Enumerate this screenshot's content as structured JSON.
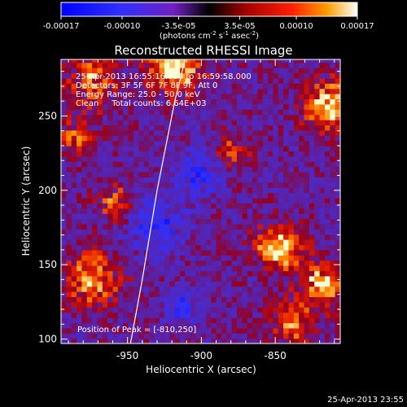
{
  "chart_data": {
    "type": "heatmap",
    "title": "Reconstructed RHESSI Image",
    "xlabel": "Heliocentric X (arcsec)",
    "ylabel": "Heliocentric Y (arcsec)",
    "xlim": [
      -995,
      -806
    ],
    "ylim": [
      97,
      288
    ],
    "xticks": [
      -950,
      -900,
      -850
    ],
    "xtick_labels": [
      "-950",
      "-900",
      "-850"
    ],
    "yticks": [
      100,
      150,
      200,
      250
    ],
    "ytick_labels": [
      "100",
      "150",
      "200",
      "250"
    ],
    "colorbar": {
      "range": [
        -0.00017,
        0.00017
      ],
      "tick_values": [
        -0.00017,
        -0.0001,
        -3.5e-05,
        3.5e-05,
        0.0001,
        0.00017
      ],
      "tick_labels": [
        "-0.00017",
        "-0.00010",
        "-3.5e-05",
        "3.5e-05",
        "0.00010",
        "0.00017"
      ],
      "units_text": "(photons cm",
      "units_exp1": "-2",
      "units_mid": " s",
      "units_exp2": "-1",
      "units_end": " asec",
      "units_exp3": "-2",
      "units_close": ")"
    },
    "info_lines": [
      "25-Apr-2013 16:55:16.000 to 16:59:58.000",
      "Detectors: 3F 5F 6F 7F 8F 9F, Att 0",
      "Energy Range: 25.0 - 50.0 keV",
      "Clean     Total counts: 6.64E+03"
    ],
    "peak_text": "Position of Peak = [-810,250]",
    "peak": [
      -810,
      250
    ],
    "limb_curve": [
      [
        -948,
        97
      ],
      [
        -940,
        140
      ],
      [
        -930,
        200
      ],
      [
        -918,
        260
      ],
      [
        -911,
        288
      ]
    ],
    "bright_regions": [
      {
        "x": -920,
        "y": 282,
        "r": 18,
        "v": 1.0
      },
      {
        "x": -975,
        "y": 272,
        "r": 16,
        "v": 0.7
      },
      {
        "x": -815,
        "y": 255,
        "r": 16,
        "v": 1.0
      },
      {
        "x": -985,
        "y": 235,
        "r": 12,
        "v": 0.6
      },
      {
        "x": -975,
        "y": 140,
        "r": 18,
        "v": 0.8
      },
      {
        "x": -850,
        "y": 160,
        "r": 16,
        "v": 0.9
      },
      {
        "x": -820,
        "y": 135,
        "r": 14,
        "v": 0.9
      },
      {
        "x": -840,
        "y": 110,
        "r": 14,
        "v": 0.7
      },
      {
        "x": -880,
        "y": 225,
        "r": 12,
        "v": 0.5
      },
      {
        "x": -960,
        "y": 190,
        "r": 12,
        "v": 0.55
      }
    ],
    "dark_regions": [
      {
        "x": -933,
        "y": 175,
        "r": 18,
        "v": -0.6
      },
      {
        "x": -905,
        "y": 210,
        "r": 16,
        "v": -0.5
      },
      {
        "x": -915,
        "y": 120,
        "r": 12,
        "v": -0.45
      }
    ]
  },
  "footer": {
    "timestamp": "25-Apr-2013 23:55"
  }
}
